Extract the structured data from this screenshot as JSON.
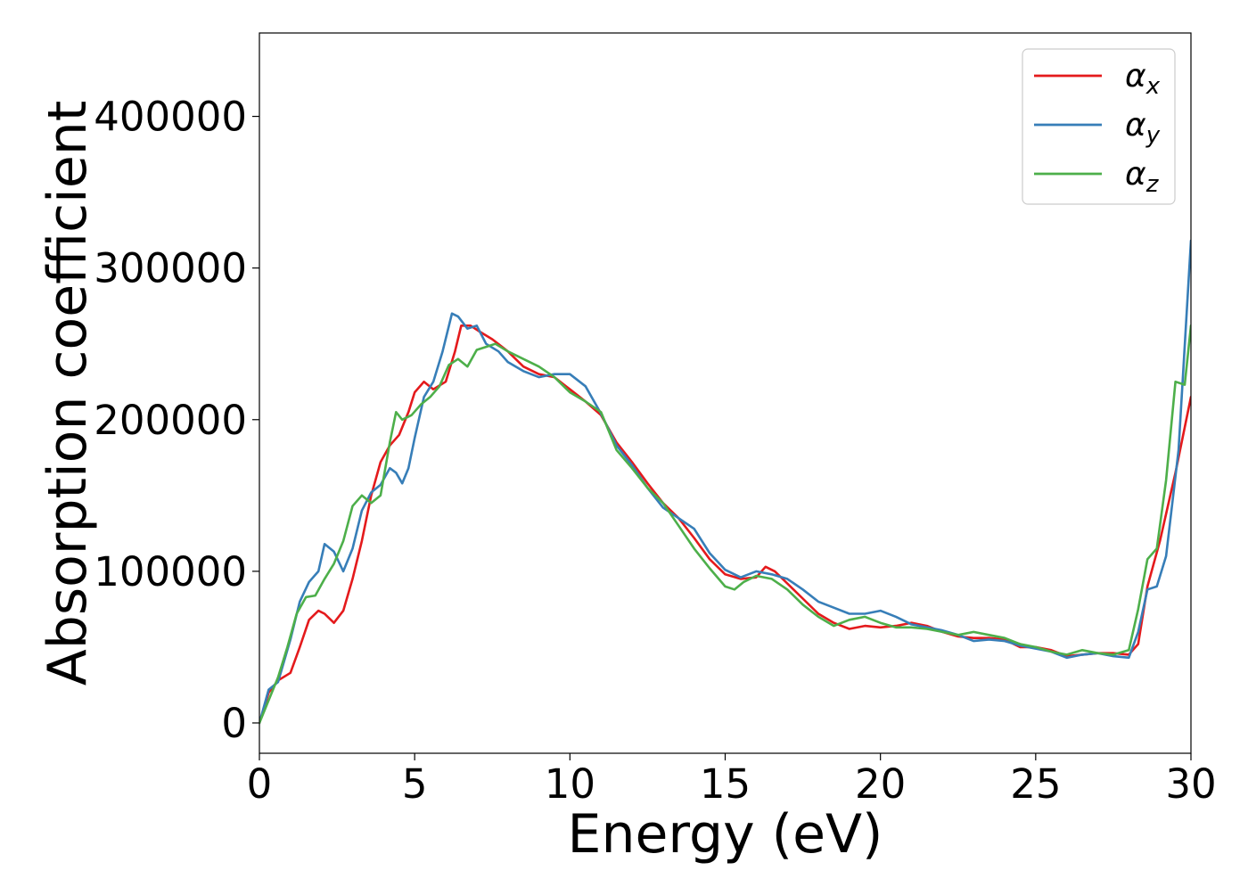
{
  "chart_data": {
    "type": "line",
    "xlabel": "Energy (eV)",
    "ylabel": "Absorption coefficient",
    "xlim": [
      0,
      30
    ],
    "ylim": [
      -20000,
      455000
    ],
    "grid": false,
    "legend_position": "top-right",
    "xticks": [
      0,
      5,
      10,
      15,
      20,
      25,
      30
    ],
    "yticks": [
      0,
      100000,
      200000,
      300000,
      400000
    ],
    "xtick_labels": [
      "0",
      "5",
      "10",
      "15",
      "20",
      "25",
      "30"
    ],
    "ytick_labels": [
      "0",
      "100000",
      "200000",
      "300000",
      "400000"
    ],
    "series": [
      {
        "name": "αx",
        "base": "α",
        "sub": "x",
        "color": "#e41a1c",
        "x": [
          0,
          0.3,
          0.6,
          1.0,
          1.3,
          1.6,
          1.9,
          2.1,
          2.4,
          2.7,
          3.0,
          3.3,
          3.6,
          3.9,
          4.2,
          4.5,
          4.8,
          5.0,
          5.3,
          5.6,
          6.0,
          6.3,
          6.5,
          6.8,
          7.1,
          7.5,
          8.0,
          8.5,
          9.0,
          9.5,
          10.0,
          10.5,
          11.0,
          11.5,
          12.0,
          12.5,
          13.0,
          13.5,
          14.0,
          14.5,
          15.0,
          15.5,
          16.0,
          16.3,
          16.6,
          17.0,
          17.5,
          18.0,
          18.5,
          19.0,
          19.5,
          20.0,
          20.5,
          21.0,
          21.5,
          22.0,
          22.5,
          23.0,
          23.5,
          24.0,
          24.5,
          25.0,
          25.5,
          26.0,
          26.5,
          27.0,
          27.5,
          28.0,
          28.3,
          28.6,
          29.0,
          29.5,
          30.0
        ],
        "y": [
          0,
          20000,
          28000,
          33000,
          50000,
          68000,
          74000,
          72000,
          66000,
          74000,
          95000,
          120000,
          150000,
          172000,
          183000,
          190000,
          205000,
          218000,
          225000,
          220000,
          225000,
          245000,
          262000,
          262000,
          258000,
          253000,
          245000,
          235000,
          230000,
          228000,
          220000,
          212000,
          203000,
          185000,
          172000,
          158000,
          145000,
          135000,
          122000,
          108000,
          98000,
          95000,
          96000,
          103000,
          100000,
          92000,
          82000,
          72000,
          66000,
          62000,
          64000,
          63000,
          64000,
          66000,
          64000,
          60000,
          57000,
          56000,
          56000,
          55000,
          50000,
          50000,
          48000,
          44000,
          45000,
          46000,
          46000,
          45000,
          52000,
          90000,
          120000,
          165000,
          215000
        ]
      },
      {
        "name": "αy",
        "base": "α",
        "sub": "y",
        "color": "#377eb8",
        "x": [
          0,
          0.3,
          0.6,
          1.0,
          1.3,
          1.6,
          1.9,
          2.1,
          2.4,
          2.7,
          3.0,
          3.3,
          3.6,
          3.9,
          4.2,
          4.4,
          4.6,
          4.8,
          5.0,
          5.3,
          5.6,
          5.9,
          6.2,
          6.4,
          6.7,
          7.0,
          7.3,
          7.7,
          8.0,
          8.5,
          9.0,
          9.5,
          10.0,
          10.5,
          11.0,
          11.5,
          12.0,
          12.5,
          13.0,
          13.5,
          14.0,
          14.5,
          15.0,
          15.5,
          16.0,
          16.5,
          17.0,
          17.5,
          18.0,
          18.5,
          19.0,
          19.5,
          20.0,
          20.5,
          21.0,
          21.5,
          22.0,
          22.5,
          23.0,
          23.5,
          24.0,
          24.5,
          25.0,
          25.5,
          26.0,
          26.5,
          27.0,
          27.5,
          28.0,
          28.3,
          28.6,
          28.9,
          29.2,
          29.6,
          30.0
        ],
        "y": [
          0,
          22000,
          27000,
          55000,
          80000,
          93000,
          100000,
          118000,
          113000,
          100000,
          115000,
          140000,
          152000,
          157000,
          168000,
          165000,
          158000,
          168000,
          188000,
          215000,
          225000,
          245000,
          270000,
          268000,
          260000,
          262000,
          250000,
          245000,
          238000,
          232000,
          228000,
          230000,
          230000,
          222000,
          204000,
          183000,
          170000,
          155000,
          142000,
          135000,
          128000,
          112000,
          101000,
          96000,
          100000,
          98000,
          95000,
          88000,
          80000,
          76000,
          72000,
          72000,
          74000,
          70000,
          65000,
          63000,
          61000,
          58000,
          54000,
          55000,
          54000,
          51000,
          49000,
          47000,
          43000,
          45000,
          46000,
          44000,
          43000,
          60000,
          88000,
          90000,
          110000,
          180000,
          318000
        ]
      },
      {
        "name": "αz",
        "base": "α",
        "sub": "z",
        "color": "#4daf4a",
        "x": [
          0,
          0.3,
          0.6,
          0.9,
          1.2,
          1.5,
          1.8,
          2.1,
          2.4,
          2.7,
          3.0,
          3.3,
          3.6,
          3.9,
          4.2,
          4.4,
          4.6,
          4.9,
          5.2,
          5.5,
          5.8,
          6.1,
          6.4,
          6.7,
          7.0,
          7.3,
          7.6,
          8.0,
          8.5,
          9.0,
          9.5,
          10.0,
          10.5,
          11.0,
          11.5,
          12.0,
          12.5,
          13.0,
          13.5,
          14.0,
          14.5,
          15.0,
          15.3,
          15.6,
          16.0,
          16.5,
          17.0,
          17.5,
          18.0,
          18.5,
          19.0,
          19.5,
          20.0,
          20.5,
          21.0,
          21.5,
          22.0,
          22.5,
          23.0,
          23.5,
          24.0,
          24.5,
          25.0,
          25.5,
          26.0,
          26.5,
          27.0,
          27.5,
          28.0,
          28.3,
          28.6,
          28.9,
          29.2,
          29.5,
          29.8,
          30.0
        ],
        "y": [
          0,
          15000,
          30000,
          50000,
          72000,
          83000,
          84000,
          95000,
          105000,
          120000,
          143000,
          150000,
          145000,
          150000,
          185000,
          205000,
          200000,
          203000,
          210000,
          215000,
          222000,
          236000,
          240000,
          235000,
          246000,
          248000,
          250000,
          245000,
          240000,
          235000,
          228000,
          218000,
          212000,
          205000,
          180000,
          168000,
          155000,
          145000,
          130000,
          115000,
          102000,
          90000,
          88000,
          93000,
          97000,
          95000,
          88000,
          78000,
          70000,
          64000,
          68000,
          70000,
          66000,
          63000,
          63000,
          62000,
          60000,
          58000,
          60000,
          58000,
          56000,
          52000,
          50000,
          47000,
          45000,
          48000,
          46000,
          45000,
          48000,
          75000,
          108000,
          115000,
          160000,
          225000,
          223000,
          262000
        ]
      }
    ]
  }
}
